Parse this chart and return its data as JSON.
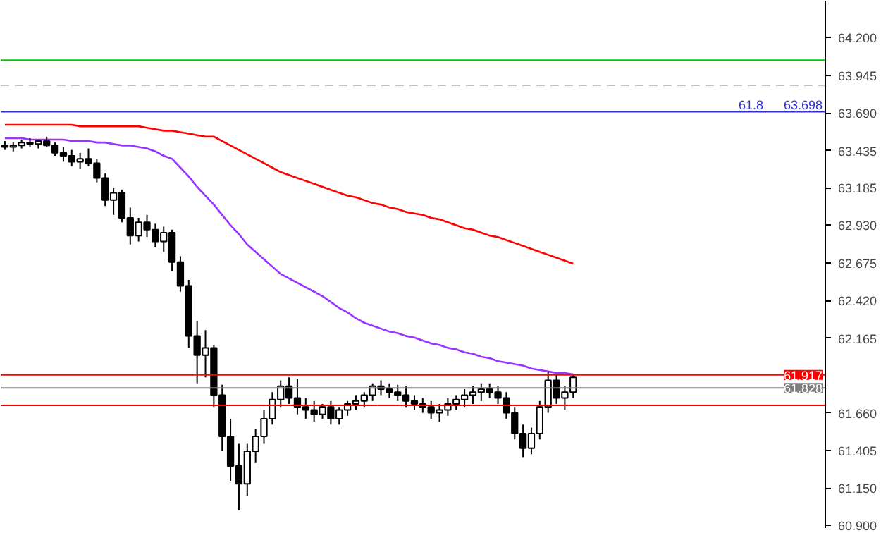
{
  "chart_data": {
    "type": "candlestick",
    "color": "#000000",
    "categories": [
      null,
      null,
      null,
      null,
      null,
      null,
      null,
      null,
      null,
      null,
      null,
      null,
      null,
      null,
      null,
      null,
      null,
      null,
      null,
      null,
      null,
      null,
      null,
      null,
      null,
      null,
      null,
      null,
      null,
      null,
      null,
      null,
      null,
      null,
      null,
      null,
      null,
      null,
      null,
      null,
      null,
      null,
      null,
      null,
      null,
      null,
      null,
      null,
      null,
      null,
      null,
      null,
      null,
      null,
      null,
      null,
      null,
      null,
      null,
      null,
      null,
      null,
      null,
      null,
      null,
      null,
      null,
      null,
      null
    ],
    "ohlc": [
      [
        63.47,
        63.5,
        63.44,
        63.46
      ],
      [
        63.46,
        63.49,
        63.43,
        63.47
      ],
      [
        63.47,
        63.51,
        63.45,
        63.49
      ],
      [
        63.49,
        63.52,
        63.46,
        63.48
      ],
      [
        63.48,
        63.51,
        63.45,
        63.5
      ],
      [
        63.5,
        63.53,
        63.46,
        63.47
      ],
      [
        63.47,
        63.49,
        63.4,
        63.42
      ],
      [
        63.42,
        63.46,
        63.36,
        63.4
      ],
      [
        63.4,
        63.44,
        63.33,
        63.36
      ],
      [
        63.36,
        63.42,
        63.31,
        63.38
      ],
      [
        63.38,
        63.45,
        63.33,
        63.35
      ],
      [
        63.35,
        63.38,
        63.22,
        63.25
      ],
      [
        63.25,
        63.28,
        63.06,
        63.1
      ],
      [
        63.1,
        63.18,
        63.0,
        63.15
      ],
      [
        63.15,
        63.17,
        62.95,
        62.98
      ],
      [
        62.98,
        63.05,
        62.8,
        62.86
      ],
      [
        62.86,
        62.98,
        62.82,
        62.95
      ],
      [
        62.95,
        63.0,
        62.85,
        62.9
      ],
      [
        62.9,
        62.94,
        62.78,
        62.82
      ],
      [
        62.82,
        62.92,
        62.75,
        62.88
      ],
      [
        62.88,
        62.9,
        62.62,
        62.68
      ],
      [
        62.68,
        62.72,
        62.48,
        62.52
      ],
      [
        62.52,
        62.56,
        62.1,
        62.18
      ],
      [
        62.18,
        62.28,
        61.86,
        62.05
      ],
      [
        62.05,
        62.22,
        61.9,
        62.1
      ],
      [
        62.1,
        62.12,
        61.7,
        61.78
      ],
      [
        61.78,
        61.85,
        61.4,
        61.5
      ],
      [
        61.5,
        61.62,
        61.2,
        61.3
      ],
      [
        61.3,
        61.45,
        61.0,
        61.18
      ],
      [
        61.18,
        61.45,
        61.1,
        61.4
      ],
      [
        61.4,
        61.55,
        61.32,
        61.5
      ],
      [
        61.5,
        61.68,
        61.45,
        61.62
      ],
      [
        61.62,
        61.8,
        61.58,
        61.75
      ],
      [
        61.75,
        61.88,
        61.7,
        61.84
      ],
      [
        61.84,
        61.9,
        61.72,
        61.76
      ],
      [
        61.76,
        61.89,
        61.65,
        61.7
      ],
      [
        61.7,
        61.76,
        61.62,
        61.68
      ],
      [
        61.68,
        61.74,
        61.6,
        61.65
      ],
      [
        61.65,
        61.72,
        61.62,
        61.7
      ],
      [
        61.7,
        61.74,
        61.58,
        61.62
      ],
      [
        61.62,
        61.7,
        61.58,
        61.68
      ],
      [
        61.68,
        61.74,
        61.64,
        61.72
      ],
      [
        61.72,
        61.78,
        61.68,
        61.74
      ],
      [
        61.74,
        61.8,
        61.7,
        61.78
      ],
      [
        61.78,
        61.86,
        61.74,
        61.84
      ],
      [
        61.84,
        61.88,
        61.78,
        61.82
      ],
      [
        61.82,
        61.86,
        61.76,
        61.8
      ],
      [
        61.8,
        61.85,
        61.74,
        61.78
      ],
      [
        61.78,
        61.84,
        61.7,
        61.74
      ],
      [
        61.74,
        61.78,
        61.68,
        61.72
      ],
      [
        61.72,
        61.76,
        61.66,
        61.7
      ],
      [
        61.7,
        61.74,
        61.62,
        61.66
      ],
      [
        61.66,
        61.72,
        61.6,
        61.68
      ],
      [
        61.68,
        61.76,
        61.64,
        61.72
      ],
      [
        61.72,
        61.78,
        61.68,
        61.75
      ],
      [
        61.75,
        61.82,
        61.7,
        61.78
      ],
      [
        61.78,
        61.84,
        61.72,
        61.8
      ],
      [
        61.8,
        61.86,
        61.74,
        61.82
      ],
      [
        61.82,
        61.86,
        61.76,
        61.8
      ],
      [
        61.8,
        61.84,
        61.72,
        61.76
      ],
      [
        61.76,
        61.8,
        61.62,
        61.66
      ],
      [
        61.66,
        61.7,
        61.48,
        61.52
      ],
      [
        61.52,
        61.58,
        61.36,
        61.42
      ],
      [
        61.42,
        61.56,
        61.38,
        61.52
      ],
      [
        61.52,
        61.74,
        61.48,
        61.7
      ],
      [
        61.7,
        61.94,
        61.66,
        61.88
      ],
      [
        61.88,
        61.92,
        61.72,
        61.76
      ],
      [
        61.76,
        61.84,
        61.68,
        61.8
      ],
      [
        61.8,
        61.92,
        61.76,
        61.9
      ]
    ],
    "series": [
      {
        "type": "line",
        "color": "#ff0000",
        "values": [
          63.61,
          63.61,
          63.61,
          63.61,
          63.61,
          63.61,
          63.61,
          63.61,
          63.61,
          63.6,
          63.6,
          63.6,
          63.6,
          63.6,
          63.6,
          63.6,
          63.6,
          63.59,
          63.58,
          63.57,
          63.57,
          63.56,
          63.55,
          63.54,
          63.53,
          63.53,
          63.5,
          63.47,
          63.44,
          63.41,
          63.38,
          63.35,
          63.32,
          63.29,
          63.27,
          63.25,
          63.23,
          63.21,
          63.19,
          63.17,
          63.15,
          63.13,
          63.12,
          63.1,
          63.08,
          63.07,
          63.05,
          63.04,
          63.02,
          63.01,
          63.0,
          62.98,
          62.97,
          62.95,
          62.93,
          62.91,
          62.9,
          62.88,
          62.86,
          62.85,
          62.83,
          62.81,
          62.79,
          62.77,
          62.75,
          62.73,
          62.71,
          62.69,
          62.67
        ]
      },
      {
        "type": "line",
        "color": "#9933ff",
        "values": [
          63.52,
          63.52,
          63.52,
          63.51,
          63.51,
          63.51,
          63.51,
          63.51,
          63.5,
          63.5,
          63.5,
          63.49,
          63.49,
          63.48,
          63.47,
          63.47,
          63.46,
          63.45,
          63.43,
          63.4,
          63.38,
          63.32,
          63.26,
          63.19,
          63.13,
          63.07,
          63.0,
          62.93,
          62.87,
          62.8,
          62.75,
          62.7,
          62.65,
          62.6,
          62.57,
          62.54,
          62.51,
          62.48,
          62.45,
          62.41,
          62.37,
          62.34,
          62.3,
          62.27,
          62.25,
          62.23,
          62.21,
          62.2,
          62.18,
          62.17,
          62.15,
          62.13,
          62.12,
          62.1,
          62.09,
          62.07,
          62.06,
          62.04,
          62.03,
          62.01,
          62.0,
          61.99,
          61.98,
          61.96,
          61.95,
          61.94,
          61.93,
          61.93,
          61.92
        ]
      }
    ],
    "ylim": [
      60.88,
      64.45
    ],
    "yticks": [
      {
        "value": 60.9,
        "label": "60.900"
      },
      {
        "value": 61.15,
        "label": "61.150"
      },
      {
        "value": 61.405,
        "label": "61.405"
      },
      {
        "value": 61.66,
        "label": "61.660"
      },
      {
        "value": 62.165,
        "label": "62.165"
      },
      {
        "value": 62.42,
        "label": "62.420"
      },
      {
        "value": 62.675,
        "label": "62.675"
      },
      {
        "value": 62.93,
        "label": "62.930"
      },
      {
        "value": 63.185,
        "label": "63.185"
      },
      {
        "value": 63.435,
        "label": "63.435"
      },
      {
        "value": 63.69,
        "label": "63.690"
      },
      {
        "value": 63.945,
        "label": "63.945"
      },
      {
        "value": 64.2,
        "label": "64.200"
      }
    ],
    "ref_lines": [
      {
        "axis": "y",
        "value": 64.048,
        "color": "#00cc00"
      },
      {
        "axis": "y",
        "value": 63.877,
        "color": "#c0c0c0",
        "line_style": "dashed"
      },
      {
        "axis": "y",
        "value": 63.698,
        "color": "#3333cc",
        "label": "63.698"
      },
      {
        "axis": "y",
        "value": 61.917,
        "color": "#ff0000",
        "label": "61.917"
      },
      {
        "axis": "y",
        "value": 61.828,
        "color": "#808080",
        "label": "61.828"
      },
      {
        "axis": "y",
        "value": 61.71,
        "color": "#ff0000"
      }
    ],
    "annotations": [
      "61.8"
    ],
    "tick_labels": "y",
    "grid": false
  }
}
